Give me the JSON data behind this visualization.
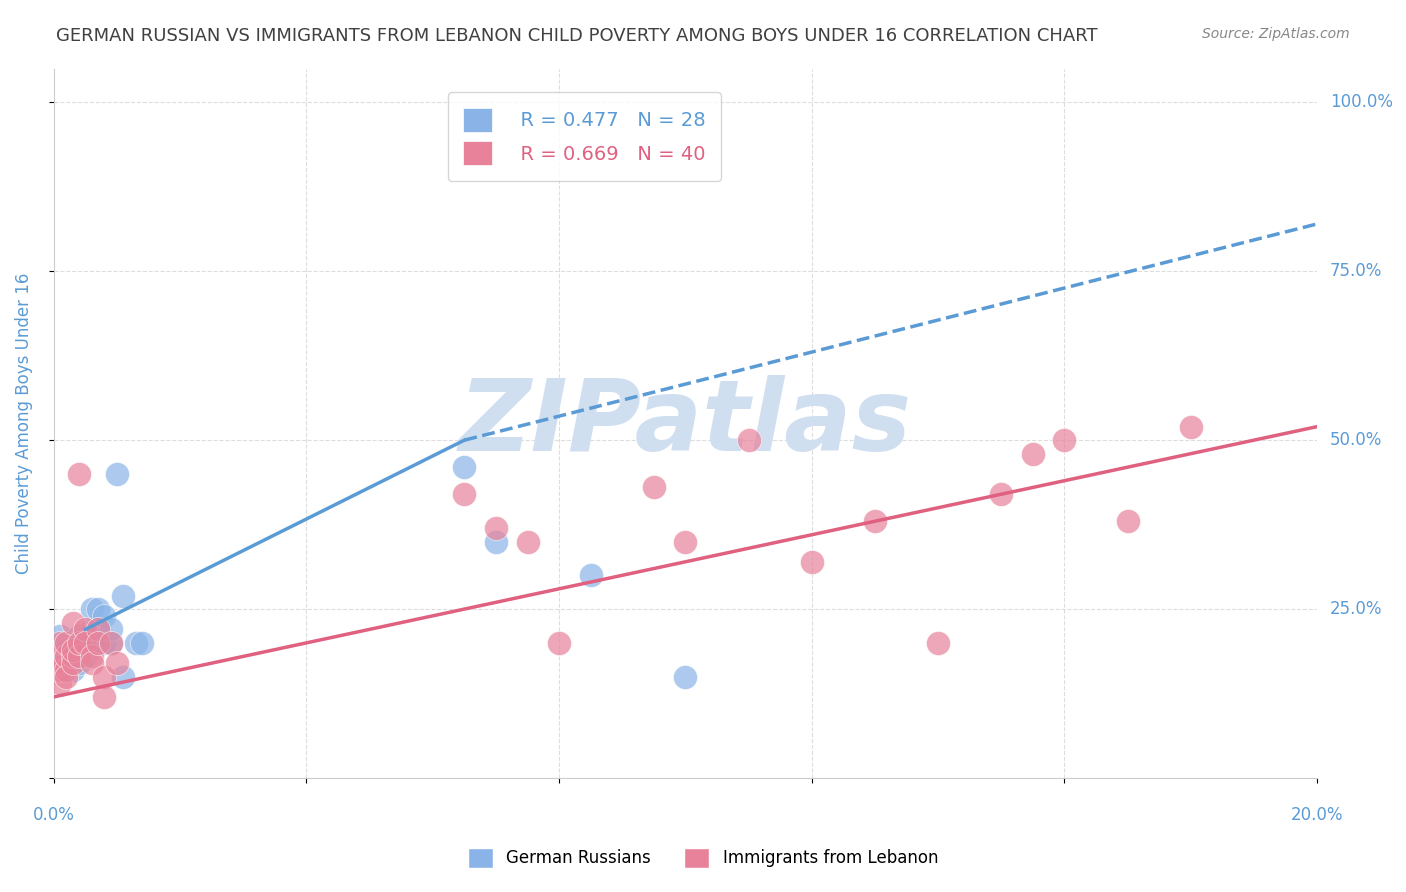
{
  "title": "GERMAN RUSSIAN VS IMMIGRANTS FROM LEBANON CHILD POVERTY AMONG BOYS UNDER 16 CORRELATION CHART",
  "source": "Source: ZipAtlas.com",
  "xlabel": "",
  "ylabel": "Child Poverty Among Boys Under 16",
  "xlim": [
    0.0,
    0.2
  ],
  "ylim": [
    0.0,
    1.05
  ],
  "yticks": [
    0.0,
    0.25,
    0.5,
    0.75,
    1.0
  ],
  "ytick_labels": [
    "",
    "25.0%",
    "50.0%",
    "75.0%",
    "100.0%"
  ],
  "xticks": [
    0.0,
    0.04,
    0.08,
    0.12,
    0.16,
    0.2
  ],
  "xtick_labels": [
    "0.0%",
    "",
    "",
    "",
    "",
    "20.0%"
  ],
  "legend_blue_r": "R = 0.477",
  "legend_blue_n": "N = 28",
  "legend_pink_r": "R = 0.669",
  "legend_pink_n": "N = 40",
  "blue_color": "#8ab4e8",
  "pink_color": "#e8829a",
  "blue_line_color": "#5b9bd5",
  "pink_line_color": "#e06080",
  "watermark": "ZIPatlas",
  "watermark_color": "#d0dff0",
  "background_color": "#ffffff",
  "title_color": "#404040",
  "axis_label_color": "#5b9bd5",
  "tick_color": "#5b9bd5",
  "grid_color": "#dddddd",
  "blue_scatter": [
    [
      0.001,
      0.21
    ],
    [
      0.002,
      0.19
    ],
    [
      0.002,
      0.18
    ],
    [
      0.003,
      0.17
    ],
    [
      0.003,
      0.16
    ],
    [
      0.004,
      0.17
    ],
    [
      0.004,
      0.19
    ],
    [
      0.004,
      0.21
    ],
    [
      0.005,
      0.18
    ],
    [
      0.005,
      0.2
    ],
    [
      0.006,
      0.2
    ],
    [
      0.006,
      0.22
    ],
    [
      0.006,
      0.25
    ],
    [
      0.007,
      0.25
    ],
    [
      0.007,
      0.22
    ],
    [
      0.008,
      0.24
    ],
    [
      0.008,
      0.2
    ],
    [
      0.009,
      0.2
    ],
    [
      0.009,
      0.22
    ],
    [
      0.01,
      0.45
    ],
    [
      0.011,
      0.27
    ],
    [
      0.011,
      0.15
    ],
    [
      0.013,
      0.2
    ],
    [
      0.014,
      0.2
    ],
    [
      0.065,
      0.46
    ],
    [
      0.07,
      0.35
    ],
    [
      0.085,
      0.3
    ],
    [
      0.1,
      0.15
    ]
  ],
  "pink_scatter": [
    [
      0.001,
      0.14
    ],
    [
      0.001,
      0.16
    ],
    [
      0.001,
      0.17
    ],
    [
      0.001,
      0.2
    ],
    [
      0.002,
      0.16
    ],
    [
      0.002,
      0.18
    ],
    [
      0.002,
      0.15
    ],
    [
      0.002,
      0.2
    ],
    [
      0.003,
      0.18
    ],
    [
      0.003,
      0.17
    ],
    [
      0.003,
      0.19
    ],
    [
      0.003,
      0.23
    ],
    [
      0.004,
      0.18
    ],
    [
      0.004,
      0.2
    ],
    [
      0.004,
      0.45
    ],
    [
      0.005,
      0.22
    ],
    [
      0.005,
      0.2
    ],
    [
      0.006,
      0.18
    ],
    [
      0.006,
      0.17
    ],
    [
      0.007,
      0.22
    ],
    [
      0.007,
      0.2
    ],
    [
      0.008,
      0.15
    ],
    [
      0.008,
      0.12
    ],
    [
      0.009,
      0.2
    ],
    [
      0.01,
      0.17
    ],
    [
      0.065,
      0.42
    ],
    [
      0.07,
      0.37
    ],
    [
      0.075,
      0.35
    ],
    [
      0.08,
      0.2
    ],
    [
      0.095,
      0.43
    ],
    [
      0.1,
      0.35
    ],
    [
      0.11,
      0.5
    ],
    [
      0.12,
      0.32
    ],
    [
      0.13,
      0.38
    ],
    [
      0.14,
      0.2
    ],
    [
      0.15,
      0.42
    ],
    [
      0.155,
      0.48
    ],
    [
      0.16,
      0.5
    ],
    [
      0.17,
      0.38
    ],
    [
      0.18,
      0.52
    ]
  ],
  "blue_line": [
    [
      0.005,
      0.22
    ],
    [
      0.065,
      0.5
    ]
  ],
  "pink_line": [
    [
      0.0,
      0.12
    ],
    [
      0.2,
      0.52
    ]
  ],
  "blue_dashed_line": [
    [
      0.065,
      0.5
    ],
    [
      0.2,
      0.82
    ]
  ]
}
